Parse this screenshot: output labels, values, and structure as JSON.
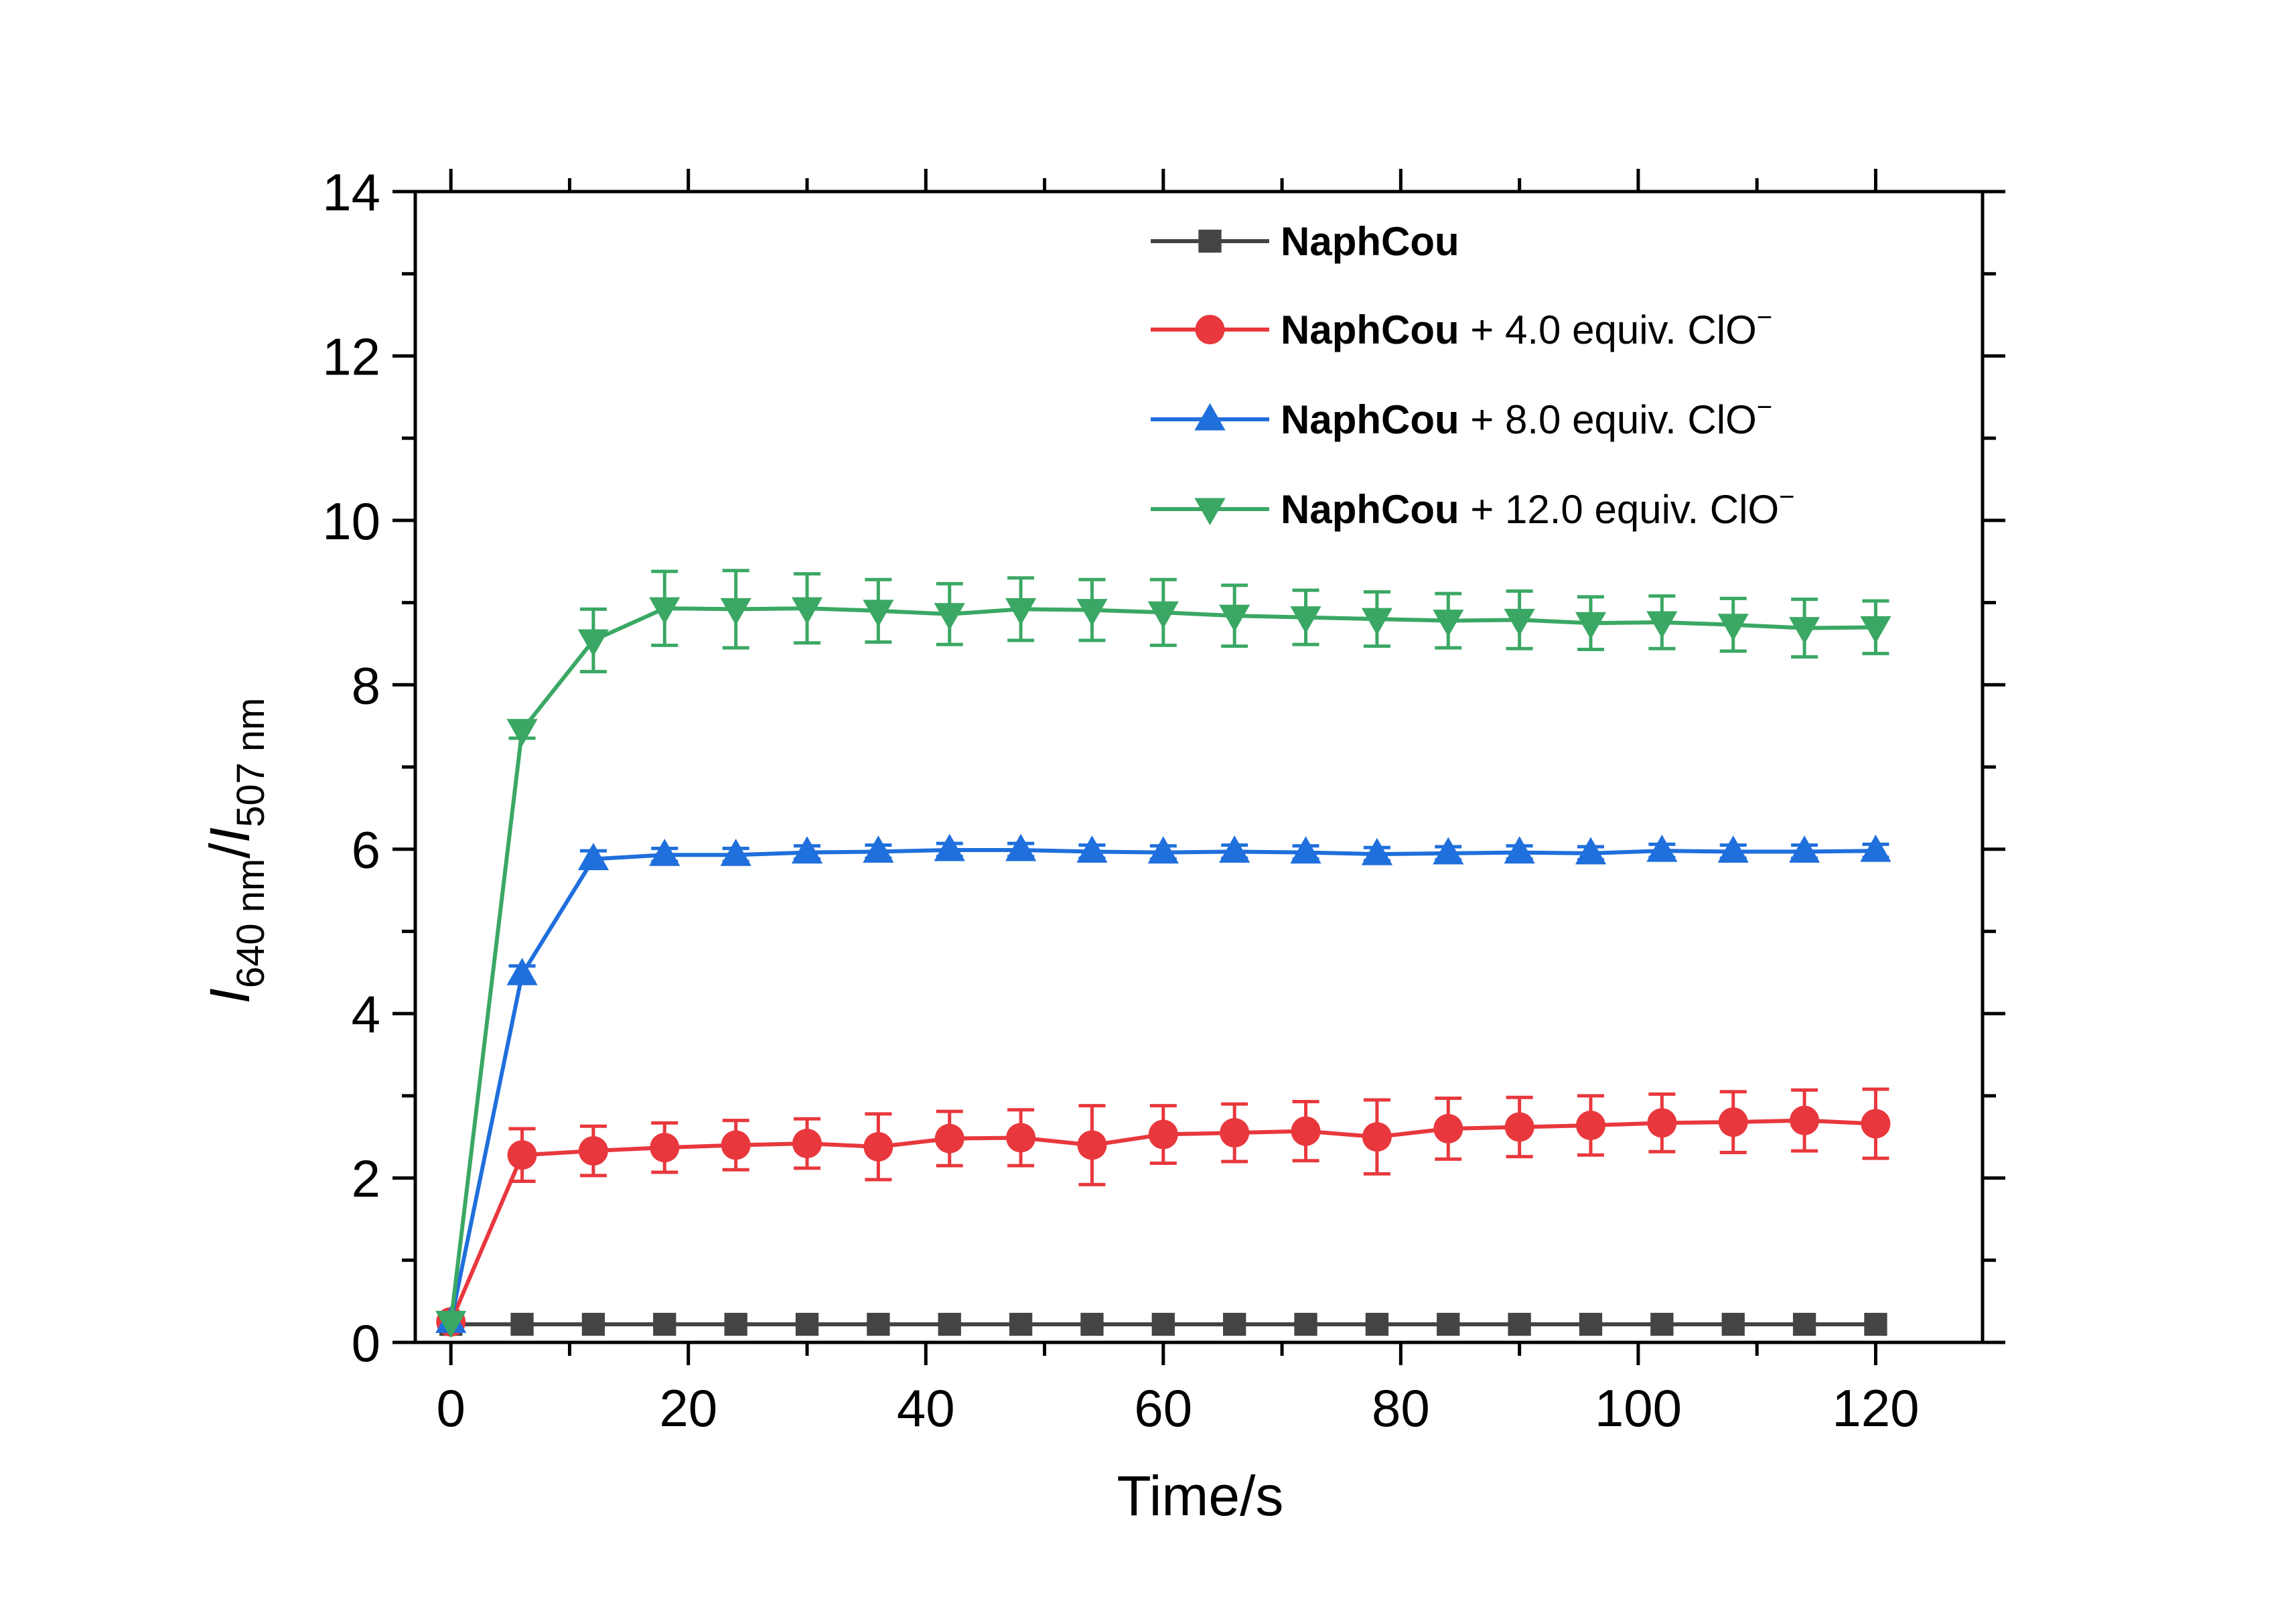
{
  "chart_data": {
    "type": "line",
    "title": "",
    "xlabel": "Time/s",
    "ylabel": {
      "italic1": "I",
      "sub1": "640 nm",
      "slash": "/",
      "italic2": "I",
      "sub2": "507 nm"
    },
    "xlim": [
      -3,
      129
    ],
    "ylim": [
      0,
      14
    ],
    "xticks": [
      "0",
      "20",
      "40",
      "60",
      "80",
      "100",
      "120"
    ],
    "yticks": [
      "0",
      "2",
      "4",
      "6",
      "8",
      "10",
      "12",
      "14"
    ],
    "grid": false,
    "legend_position": "top-right",
    "x": [
      0,
      6,
      12,
      18,
      24,
      30,
      36,
      42,
      48,
      54,
      60,
      66,
      72,
      78,
      84,
      90,
      96,
      102,
      108,
      114,
      120
    ],
    "series": [
      {
        "name": "NaphCou",
        "legend": {
          "bold": "NaphCou",
          "rest": "",
          "sup": ""
        },
        "color": "#444444",
        "marker": "square",
        "values": [
          0.22,
          0.22,
          0.22,
          0.22,
          0.22,
          0.22,
          0.22,
          0.22,
          0.22,
          0.22,
          0.22,
          0.22,
          0.22,
          0.22,
          0.22,
          0.22,
          0.22,
          0.22,
          0.22,
          0.22,
          0.22
        ],
        "errors": [
          0.02,
          0.02,
          0.02,
          0.02,
          0.02,
          0.02,
          0.02,
          0.02,
          0.02,
          0.02,
          0.02,
          0.02,
          0.02,
          0.02,
          0.02,
          0.02,
          0.02,
          0.02,
          0.02,
          0.02,
          0.02
        ]
      },
      {
        "name": "NaphCou + 4.0 equiv. ClO⁻",
        "legend": {
          "bold": "NaphCou",
          "rest": " + 4.0 equiv. ClO",
          "sup": "−"
        },
        "color": "#e8383d",
        "marker": "circle",
        "values": [
          0.25,
          2.28,
          2.33,
          2.37,
          2.4,
          2.42,
          2.38,
          2.48,
          2.49,
          2.4,
          2.53,
          2.55,
          2.57,
          2.5,
          2.6,
          2.62,
          2.64,
          2.67,
          2.68,
          2.7,
          2.66
        ],
        "errors": [
          0.05,
          0.32,
          0.3,
          0.3,
          0.3,
          0.3,
          0.4,
          0.33,
          0.34,
          0.48,
          0.35,
          0.35,
          0.36,
          0.45,
          0.37,
          0.36,
          0.36,
          0.35,
          0.37,
          0.37,
          0.42
        ]
      },
      {
        "name": "NaphCou + 8.0 equiv. ClO⁻",
        "legend": {
          "bold": "NaphCou",
          "rest": " + 8.0 equiv. ClO",
          "sup": "−"
        },
        "color": "#1f6fdc",
        "marker": "triangle-up",
        "values": [
          0.25,
          4.48,
          5.88,
          5.93,
          5.93,
          5.96,
          5.97,
          5.99,
          5.99,
          5.97,
          5.96,
          5.97,
          5.96,
          5.94,
          5.95,
          5.96,
          5.95,
          5.98,
          5.97,
          5.97,
          5.98
        ],
        "errors": [
          0.05,
          0.1,
          0.1,
          0.08,
          0.08,
          0.08,
          0.08,
          0.08,
          0.08,
          0.08,
          0.08,
          0.08,
          0.08,
          0.08,
          0.08,
          0.08,
          0.08,
          0.08,
          0.08,
          0.08,
          0.08
        ]
      },
      {
        "name": "NaphCou + 12.0 equiv. ClO⁻",
        "legend": {
          "bold": "NaphCou",
          "rest": " + 12.0 equiv. ClO",
          "sup": "−"
        },
        "color": "#3aa864",
        "marker": "triangle-down",
        "values": [
          0.25,
          7.45,
          8.54,
          8.93,
          8.92,
          8.93,
          8.9,
          8.86,
          8.92,
          8.91,
          8.88,
          8.84,
          8.82,
          8.8,
          8.78,
          8.79,
          8.75,
          8.76,
          8.73,
          8.69,
          8.7
        ],
        "errors": [
          0.05,
          0.1,
          0.38,
          0.45,
          0.47,
          0.42,
          0.38,
          0.37,
          0.38,
          0.37,
          0.4,
          0.37,
          0.33,
          0.33,
          0.33,
          0.35,
          0.32,
          0.32,
          0.32,
          0.35,
          0.32
        ]
      }
    ]
  }
}
